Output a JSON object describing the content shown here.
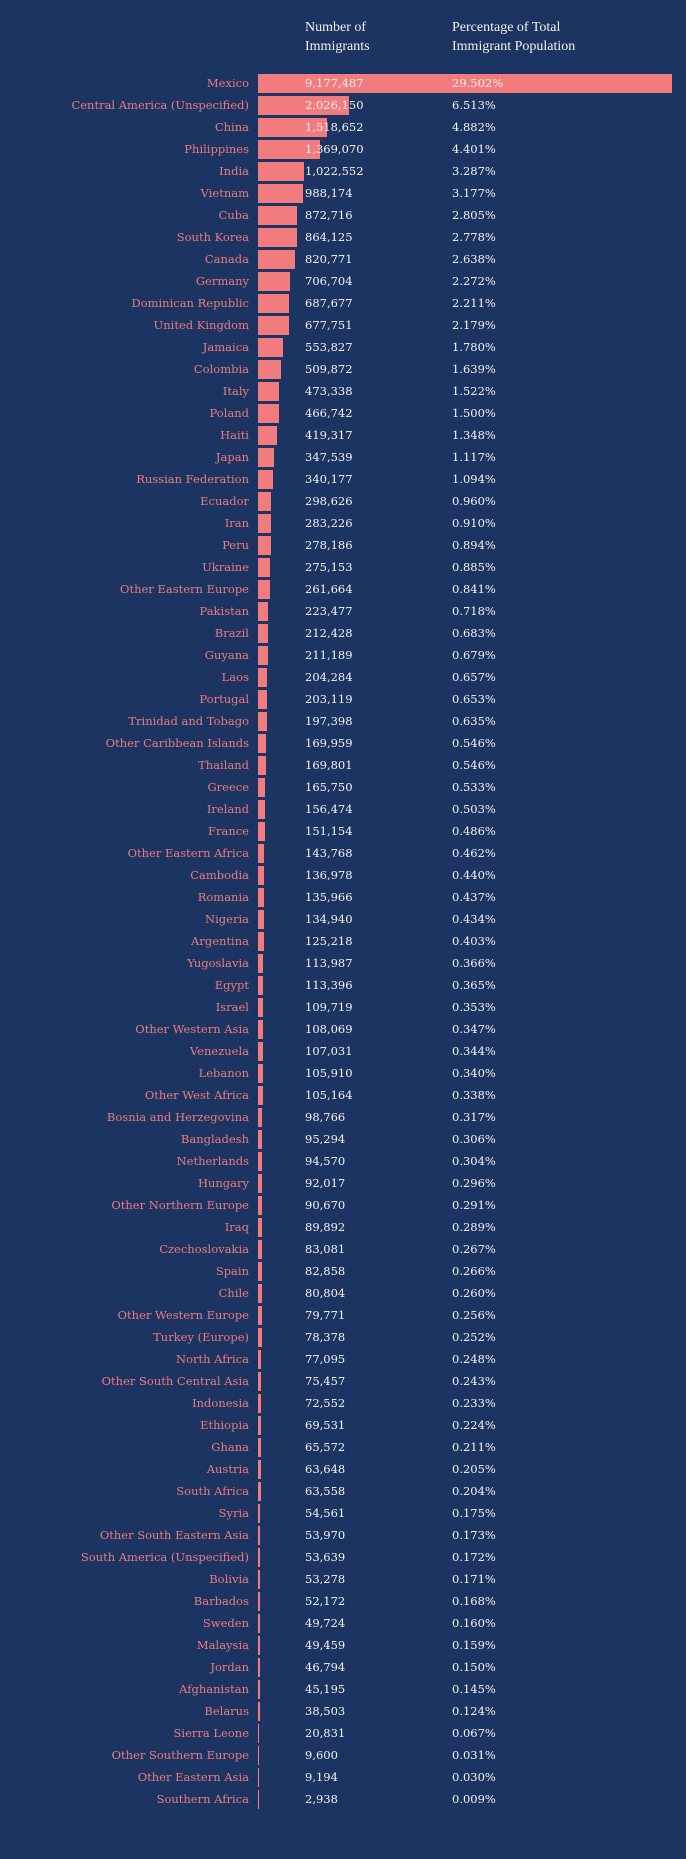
{
  "chart_data": {
    "type": "bar",
    "orientation": "horizontal",
    "columns": [
      "Number of Immigrants",
      "Percentage of Total Immigrant Population"
    ],
    "colors": {
      "background": "#1c3461",
      "bar": "#f27b7d",
      "label": "#ef7a7d",
      "value": "#f4f4f4"
    },
    "rows": [
      [
        "Mexico",
        "9,177,487",
        "29.502%"
      ],
      [
        "Central America (Unspecified)",
        "2,026,150",
        "6.513%"
      ],
      [
        "China",
        "1,518,652",
        "4.882%"
      ],
      [
        "Philippines",
        "1,369,070",
        "4.401%"
      ],
      [
        "India",
        "1,022,552",
        "3.287%"
      ],
      [
        "Vietnam",
        "988,174",
        "3.177%"
      ],
      [
        "Cuba",
        "872,716",
        "2.805%"
      ],
      [
        "South Korea",
        "864,125",
        "2.778%"
      ],
      [
        "Canada",
        "820,771",
        "2.638%"
      ],
      [
        "Germany",
        "706,704",
        "2.272%"
      ],
      [
        "Dominican Republic",
        "687,677",
        "2.211%"
      ],
      [
        "United Kingdom",
        "677,751",
        "2.179%"
      ],
      [
        "Jamaica",
        "553,827",
        "1.780%"
      ],
      [
        "Colombia",
        "509,872",
        "1.639%"
      ],
      [
        "Italy",
        "473,338",
        "1.522%"
      ],
      [
        "Poland",
        "466,742",
        "1.500%"
      ],
      [
        "Haiti",
        "419,317",
        "1.348%"
      ],
      [
        "Japan",
        "347,539",
        "1.117%"
      ],
      [
        "Russian Federation",
        "340,177",
        "1.094%"
      ],
      [
        "Ecuador",
        "298,626",
        "0.960%"
      ],
      [
        "Iran",
        "283,226",
        "0.910%"
      ],
      [
        "Peru",
        "278,186",
        "0.894%"
      ],
      [
        "Ukraine",
        "275,153",
        "0.885%"
      ],
      [
        "Other Eastern Europe",
        "261,664",
        "0.841%"
      ],
      [
        "Pakistan",
        "223,477",
        "0.718%"
      ],
      [
        "Brazil",
        "212,428",
        "0.683%"
      ],
      [
        "Guyana",
        "211,189",
        "0.679%"
      ],
      [
        "Laos",
        "204,284",
        "0.657%"
      ],
      [
        "Portugal",
        "203,119",
        "0.653%"
      ],
      [
        "Trinidad and Tobago",
        "197,398",
        "0.635%"
      ],
      [
        "Other Caribbean Islands",
        "169,959",
        "0.546%"
      ],
      [
        "Thailand",
        "169,801",
        "0.546%"
      ],
      [
        "Greece",
        "165,750",
        "0.533%"
      ],
      [
        "Ireland",
        "156,474",
        "0.503%"
      ],
      [
        "France",
        "151,154",
        "0.486%"
      ],
      [
        "Other Eastern Africa",
        "143,768",
        "0.462%"
      ],
      [
        "Cambodia",
        "136,978",
        "0.440%"
      ],
      [
        "Romania",
        "135,966",
        "0.437%"
      ],
      [
        "Nigeria",
        "134,940",
        "0.434%"
      ],
      [
        "Argentina",
        "125,218",
        "0.403%"
      ],
      [
        "Yugoslavia",
        "113,987",
        "0.366%"
      ],
      [
        "Egypt",
        "113,396",
        "0.365%"
      ],
      [
        "Israel",
        "109,719",
        "0.353%"
      ],
      [
        "Other Western Asia",
        "108,069",
        "0.347%"
      ],
      [
        "Venezuela",
        "107,031",
        "0.344%"
      ],
      [
        "Lebanon",
        "105,910",
        "0.340%"
      ],
      [
        "Other West Africa",
        "105,164",
        "0.338%"
      ],
      [
        "Bosnia and Herzegovina",
        "98,766",
        "0.317%"
      ],
      [
        "Bangladesh",
        "95,294",
        "0.306%"
      ],
      [
        "Netherlands",
        "94,570",
        "0.304%"
      ],
      [
        "Hungary",
        "92,017",
        "0.296%"
      ],
      [
        "Other Northern Europe",
        "90,670",
        "0.291%"
      ],
      [
        "Iraq",
        "89,892",
        "0.289%"
      ],
      [
        "Czechoslovakia",
        "83,081",
        "0.267%"
      ],
      [
        "Spain",
        "82,858",
        "0.266%"
      ],
      [
        "Chile",
        "80,804",
        "0.260%"
      ],
      [
        "Other Western Europe",
        "79,771",
        "0.256%"
      ],
      [
        "Turkey (Europe)",
        "78,378",
        "0.252%"
      ],
      [
        "North Africa",
        "77,095",
        "0.248%"
      ],
      [
        "Other South Central Asia",
        "75,457",
        "0.243%"
      ],
      [
        "Indonesia",
        "72,552",
        "0.233%"
      ],
      [
        "Ethiopia",
        "69,531",
        "0.224%"
      ],
      [
        "Ghana",
        "65,572",
        "0.211%"
      ],
      [
        "Austria",
        "63,648",
        "0.205%"
      ],
      [
        "South Africa",
        "63,558",
        "0.204%"
      ],
      [
        "Syria",
        "54,561",
        "0.175%"
      ],
      [
        "Other South Eastern Asia",
        "53,970",
        "0.173%"
      ],
      [
        "South America (Unspecified)",
        "53,639",
        "0.172%"
      ],
      [
        "Bolivia",
        "53,278",
        "0.171%"
      ],
      [
        "Barbados",
        "52,172",
        "0.168%"
      ],
      [
        "Sweden",
        "49,724",
        "0.160%"
      ],
      [
        "Malaysia",
        "49,459",
        "0.159%"
      ],
      [
        "Jordan",
        "46,794",
        "0.150%"
      ],
      [
        "Afghanistan",
        "45,195",
        "0.145%"
      ],
      [
        "Belarus",
        "38,503",
        "0.124%"
      ],
      [
        "Sierra Leone",
        "20,831",
        "0.067%"
      ],
      [
        "Other Southern Europe",
        "9,600",
        "0.031%"
      ],
      [
        "Other Eastern Asia",
        "9,194",
        "0.030%"
      ],
      [
        "Southern Africa",
        "2,938",
        "0.009%"
      ]
    ]
  },
  "header": {
    "col1_line1": "Number of",
    "col1_line2": "Immigrants",
    "col2_line1": "Percentage of Total",
    "col2_line2": "Immigrant Population"
  }
}
